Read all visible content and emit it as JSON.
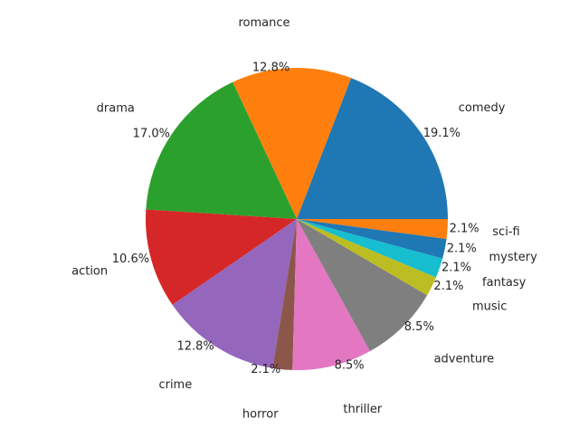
{
  "chart_data": {
    "type": "pie",
    "title": "",
    "startangle_deg": 0,
    "direction": "counterclockwise",
    "slices": [
      {
        "label": "comedy",
        "value": 19.1,
        "pct_label": "19.1%",
        "color": "#1f77b4"
      },
      {
        "label": "romance",
        "value": 12.8,
        "pct_label": "12.8%",
        "color": "#ff7f0e"
      },
      {
        "label": "drama",
        "value": 17.0,
        "pct_label": "17.0%",
        "color": "#2ca02c"
      },
      {
        "label": "action",
        "value": 10.6,
        "pct_label": "10.6%",
        "color": "#d62728"
      },
      {
        "label": "crime",
        "value": 12.8,
        "pct_label": "12.8%",
        "color": "#9467bd"
      },
      {
        "label": "horror",
        "value": 2.1,
        "pct_label": "2.1%",
        "color": "#8c564b"
      },
      {
        "label": "thriller",
        "value": 8.5,
        "pct_label": "8.5%",
        "color": "#e377c2"
      },
      {
        "label": "adventure",
        "value": 8.5,
        "pct_label": "8.5%",
        "color": "#7f7f7f"
      },
      {
        "label": "music",
        "value": 2.1,
        "pct_label": "2.1%",
        "color": "#bcbd22"
      },
      {
        "label": "fantasy",
        "value": 2.1,
        "pct_label": "2.1%",
        "color": "#17becf"
      },
      {
        "label": "mystery",
        "value": 2.1,
        "pct_label": "2.1%",
        "color": "#1f77b4"
      },
      {
        "label": "sci-fi",
        "value": 2.1,
        "pct_label": "2.1%",
        "color": "#ff7f0e"
      }
    ]
  }
}
